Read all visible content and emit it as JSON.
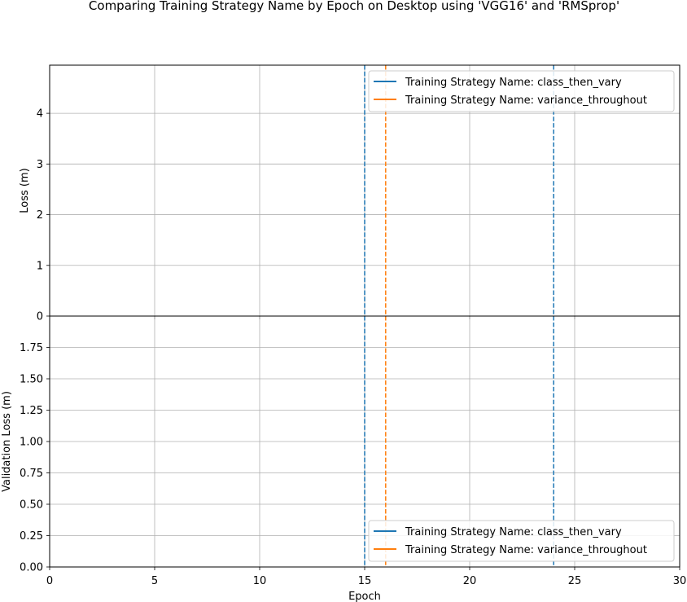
{
  "figure": {
    "title": "Comparing Training Strategy Name by Epoch on Desktop using 'VGG16' and 'RMSprop'"
  },
  "chart_data": [
    {
      "type": "line",
      "panel": "top",
      "title": "",
      "xlabel": "",
      "ylabel": "Loss (m)",
      "xlim": [
        0,
        30
      ],
      "ylim": [
        0,
        4.95
      ],
      "yticks": [
        0,
        1,
        2,
        3,
        4
      ],
      "ytick_labels": [
        "0",
        "1",
        "2",
        "3",
        "4"
      ],
      "xticks": [
        0,
        5,
        10,
        15,
        20,
        25,
        30
      ],
      "grid": true,
      "legend_position": "upper right",
      "series": [
        {
          "name": "Training Strategy Name: class_then_vary",
          "color": "#1f77b4",
          "vlines": [
            15,
            24
          ]
        },
        {
          "name": "Training Strategy Name: variance_throughout",
          "color": "#ff7f0e",
          "vlines": [
            16
          ]
        }
      ]
    },
    {
      "type": "line",
      "panel": "bottom",
      "title": "",
      "xlabel": "Epoch",
      "ylabel": "Validation Loss (m)",
      "xlim": [
        0,
        30
      ],
      "ylim": [
        0,
        2.0
      ],
      "yticks": [
        0,
        0.25,
        0.5,
        0.75,
        1.0,
        1.25,
        1.5,
        1.75
      ],
      "ytick_labels": [
        "0.00",
        "0.25",
        "0.50",
        "0.75",
        "1.00",
        "1.25",
        "1.50",
        "1.75"
      ],
      "xticks": [
        0,
        5,
        10,
        15,
        20,
        25,
        30
      ],
      "xtick_labels": [
        "0",
        "5",
        "10",
        "15",
        "20",
        "25",
        "30"
      ],
      "grid": true,
      "legend_position": "lower right",
      "series": [
        {
          "name": "Training Strategy Name: class_then_vary",
          "color": "#1f77b4",
          "vlines": [
            15,
            24
          ]
        },
        {
          "name": "Training Strategy Name: variance_throughout",
          "color": "#ff7f0e",
          "vlines": [
            16
          ]
        }
      ]
    }
  ]
}
